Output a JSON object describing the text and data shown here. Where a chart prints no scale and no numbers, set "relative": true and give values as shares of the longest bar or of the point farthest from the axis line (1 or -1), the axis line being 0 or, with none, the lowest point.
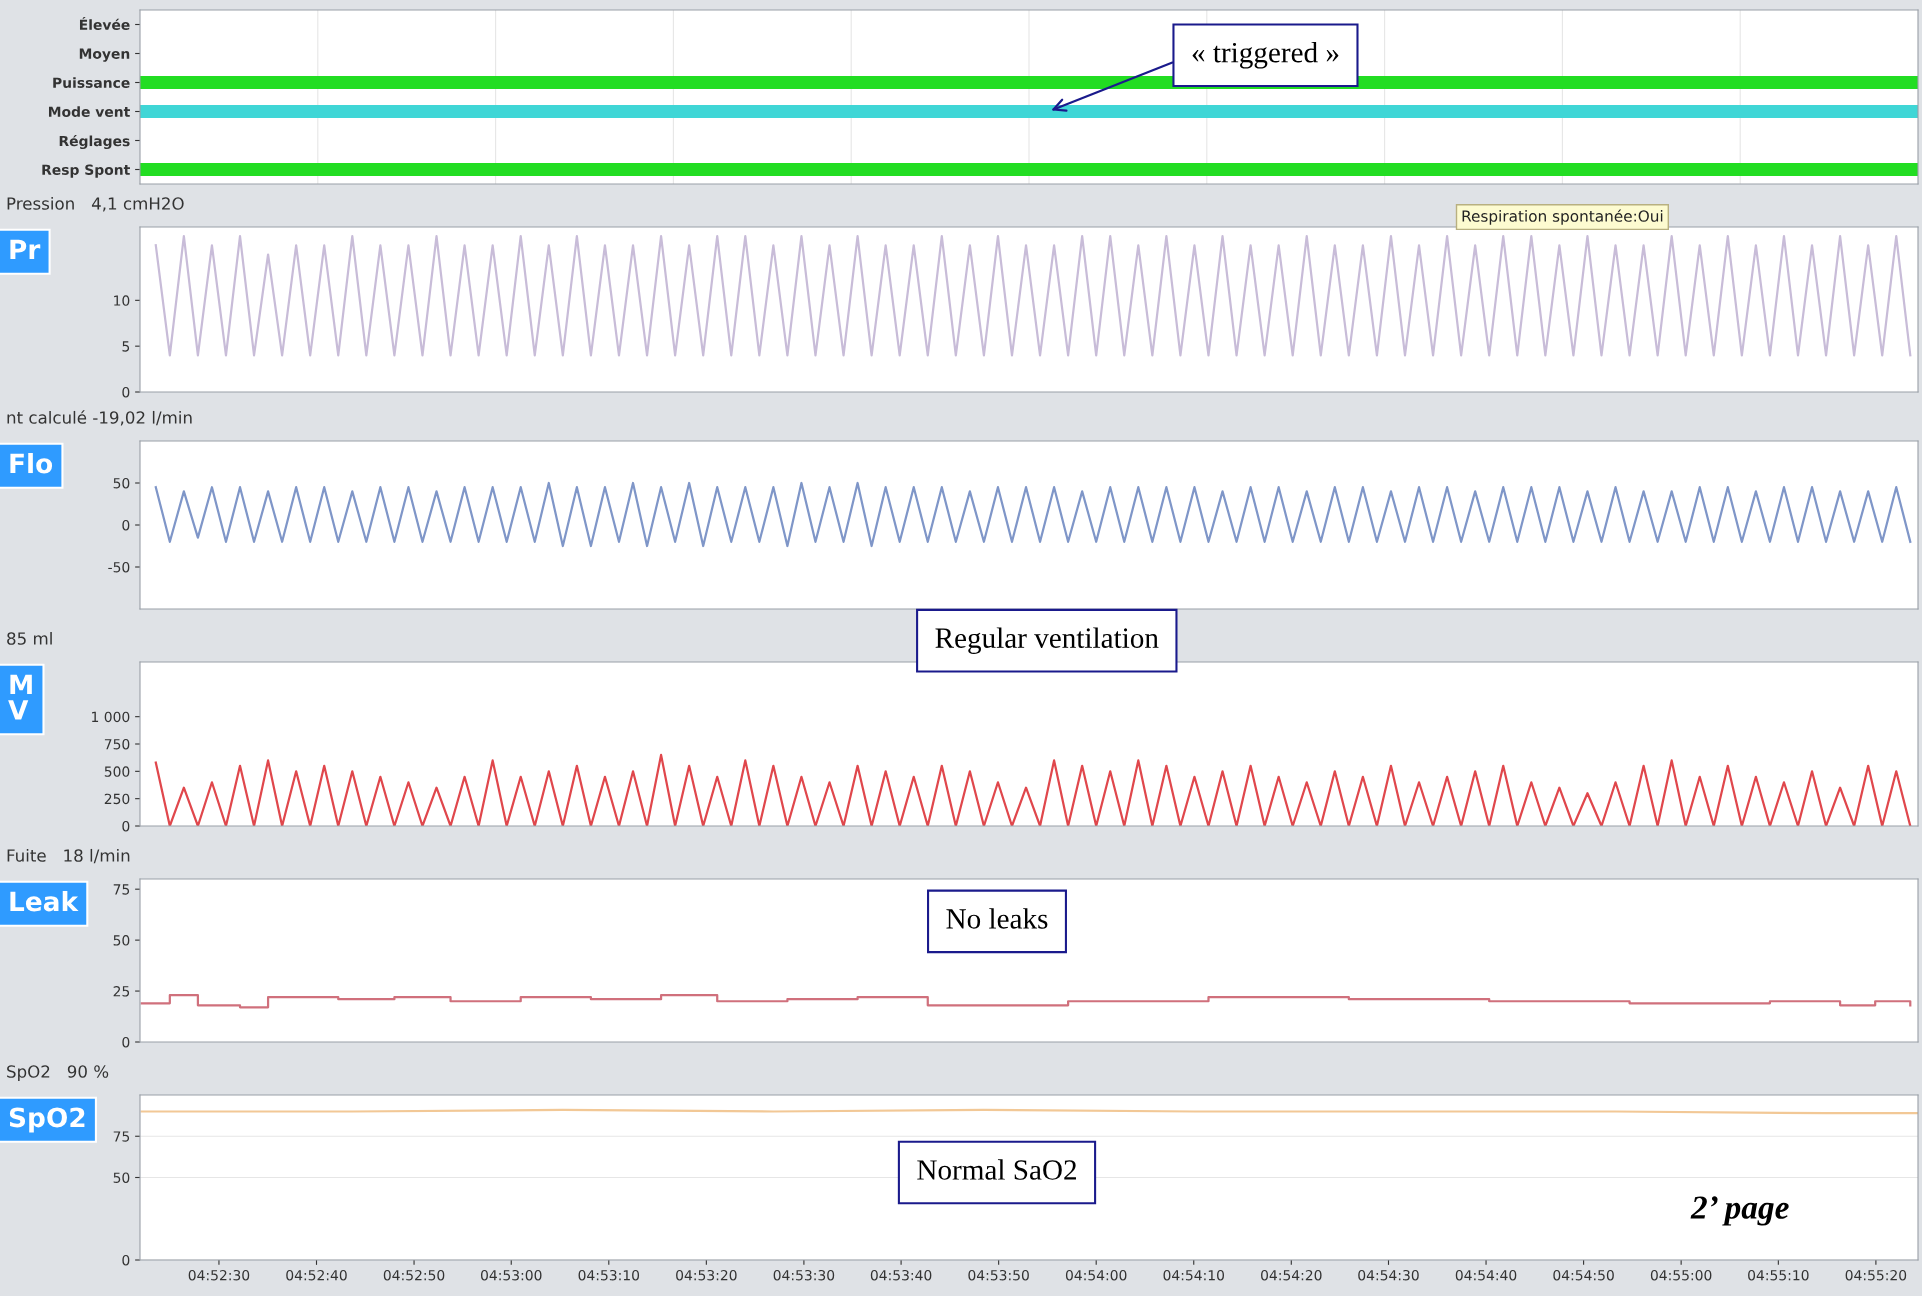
{
  "chart_data": [
    {
      "type": "bar",
      "orientation": "horizontal",
      "relative": true,
      "tick_labels": "y",
      "grid": "x",
      "categories": [
        "Élevée",
        "Moyen",
        "Puissance",
        "Mode vent",
        "Réglages",
        "Resp Spont"
      ],
      "values": [
        null,
        null,
        1,
        1,
        null,
        1
      ],
      "colors": [
        "#22dd22",
        "#22dd22",
        "#22dd22",
        "#3fd6d6",
        "#22dd22",
        "#22dd22"
      ],
      "annotations": [
        "« triggered »"
      ]
    },
    {
      "type": "line",
      "title": "Pression   4,1 cmH2O",
      "ylabel": "Pr",
      "tick_labels": "y",
      "xlim": [
        4.87275,
        4.92342
      ],
      "ylim": [
        0,
        18
      ],
      "yticks": [
        0,
        5,
        10
      ],
      "annotations": [
        "Respiration spontanée:Oui"
      ],
      "series": [
        {
          "color": "#c8bcd8",
          "x": [
            4.8732,
            4.8736,
            4.874,
            4.8744,
            4.8748,
            4.8752,
            4.8756,
            4.876,
            4.8764,
            4.8768,
            4.8772,
            4.8776,
            4.878,
            4.8784,
            4.8788,
            4.8792,
            4.8796,
            4.88,
            4.8804,
            4.8808,
            4.8812,
            4.8816,
            4.882,
            4.8824,
            4.8828,
            4.8832,
            4.8836,
            4.884,
            4.8844,
            4.8848,
            4.8852,
            4.8856,
            4.886,
            4.8864,
            4.8868,
            4.8872,
            4.8876,
            4.888,
            4.8884,
            4.8888,
            4.8892,
            4.8896,
            4.89,
            4.8904,
            4.8908,
            4.8912,
            4.8916,
            4.892,
            4.8924,
            4.8928,
            4.8932,
            4.8936,
            4.894,
            4.8944,
            4.8948,
            4.8952,
            4.8956,
            4.896,
            4.8964,
            4.8968,
            4.8972,
            4.8976,
            4.898,
            4.8984,
            4.8988,
            4.8992,
            4.8996,
            4.9,
            4.9004,
            4.9008,
            4.9012,
            4.9016,
            4.902,
            4.9024,
            4.9028,
            4.9032,
            4.9036,
            4.904,
            4.9044,
            4.9048,
            4.9052,
            4.9056,
            4.906,
            4.9064,
            4.9068,
            4.9072,
            4.9076,
            4.908,
            4.9084,
            4.9088,
            4.9092,
            4.9096,
            4.91,
            4.9104,
            4.9108,
            4.9112,
            4.9116,
            4.912,
            4.9124,
            4.9128,
            4.9132,
            4.9136,
            4.914,
            4.9144,
            4.9148,
            4.9152,
            4.9156,
            4.916,
            4.9164,
            4.9168,
            4.9172,
            4.9176,
            4.918,
            4.9184,
            4.9188,
            4.9192,
            4.9196,
            4.92,
            4.9204,
            4.9208,
            4.9212,
            4.9216,
            4.922,
            4.9224,
            4.9228,
            4.9232
          ],
          "values": [
            16,
            4,
            17,
            4,
            16,
            4,
            17,
            4,
            15,
            4,
            16,
            4,
            16,
            4,
            17,
            4,
            16,
            4,
            16,
            4,
            17,
            4,
            16,
            4,
            16,
            4,
            17,
            4,
            16,
            4,
            17,
            4,
            16,
            4,
            16,
            4,
            17,
            4,
            16,
            4,
            17,
            4,
            17,
            4,
            16,
            4,
            17,
            4,
            16,
            4,
            17,
            4,
            16,
            4,
            16,
            4,
            17,
            4,
            16,
            4,
            17,
            4,
            16,
            4,
            16,
            4,
            17,
            4,
            17,
            4,
            16,
            4,
            17,
            4,
            16,
            4,
            17,
            4,
            16,
            4,
            16,
            4,
            17,
            4,
            16,
            4,
            16,
            4,
            17,
            4,
            16,
            4,
            17,
            4,
            16,
            4,
            17,
            4,
            17,
            4,
            16,
            4,
            17,
            4,
            16,
            4,
            16,
            4,
            17,
            4,
            16,
            4,
            17,
            4,
            16,
            4,
            17,
            4,
            16,
            4,
            17,
            4,
            16,
            4,
            17,
            4
          ]
        }
      ]
    },
    {
      "type": "line",
      "title": "nt calculé -19,02 l/min",
      "ylabel": "Flo",
      "tick_labels": "y",
      "xlim": [
        4.87275,
        4.92342
      ],
      "ylim": [
        -100,
        100
      ],
      "yticks": [
        -50,
        0,
        50
      ],
      "series": [
        {
          "color": "#7f96c8",
          "x": [
            4.8732,
            4.8736,
            4.874,
            4.8744,
            4.8748,
            4.8752,
            4.8756,
            4.876,
            4.8764,
            4.8768,
            4.8772,
            4.8776,
            4.878,
            4.8784,
            4.8788,
            4.8792,
            4.8796,
            4.88,
            4.8804,
            4.8808,
            4.8812,
            4.8816,
            4.882,
            4.8824,
            4.8828,
            4.8832,
            4.8836,
            4.884,
            4.8844,
            4.8848,
            4.8852,
            4.8856,
            4.886,
            4.8864,
            4.8868,
            4.8872,
            4.8876,
            4.888,
            4.8884,
            4.8888,
            4.8892,
            4.8896,
            4.89,
            4.8904,
            4.8908,
            4.8912,
            4.8916,
            4.892,
            4.8924,
            4.8928,
            4.8932,
            4.8936,
            4.894,
            4.8944,
            4.8948,
            4.8952,
            4.8956,
            4.896,
            4.8964,
            4.8968,
            4.8972,
            4.8976,
            4.898,
            4.8984,
            4.8988,
            4.8992,
            4.8996,
            4.9,
            4.9004,
            4.9008,
            4.9012,
            4.9016,
            4.902,
            4.9024,
            4.9028,
            4.9032,
            4.9036,
            4.904,
            4.9044,
            4.9048,
            4.9052,
            4.9056,
            4.906,
            4.9064,
            4.9068,
            4.9072,
            4.9076,
            4.908,
            4.9084,
            4.9088,
            4.9092,
            4.9096,
            4.91,
            4.9104,
            4.9108,
            4.9112,
            4.9116,
            4.912,
            4.9124,
            4.9128,
            4.9132,
            4.9136,
            4.914,
            4.9144,
            4.9148,
            4.9152,
            4.9156,
            4.916,
            4.9164,
            4.9168,
            4.9172,
            4.9176,
            4.918,
            4.9184,
            4.9188,
            4.9192,
            4.9196,
            4.92,
            4.9204,
            4.9208,
            4.9212,
            4.9216,
            4.922,
            4.9224,
            4.9228,
            4.9232
          ],
          "values": [
            45,
            -20,
            40,
            -15,
            45,
            -20,
            45,
            -20,
            40,
            -20,
            45,
            -20,
            45,
            -20,
            40,
            -20,
            45,
            -20,
            45,
            -20,
            40,
            -20,
            45,
            -20,
            45,
            -20,
            45,
            -20,
            50,
            -25,
            45,
            -25,
            45,
            -20,
            50,
            -25,
            45,
            -20,
            50,
            -25,
            45,
            -20,
            45,
            -20,
            45,
            -25,
            50,
            -20,
            45,
            -20,
            50,
            -25,
            45,
            -20,
            45,
            -20,
            45,
            -20,
            40,
            -20,
            45,
            -20,
            45,
            -20,
            45,
            -20,
            40,
            -20,
            45,
            -20,
            45,
            -20,
            45,
            -20,
            45,
            -20,
            40,
            -20,
            45,
            -20,
            45,
            -20,
            40,
            -20,
            45,
            -20,
            45,
            -20,
            40,
            -20,
            45,
            -20,
            45,
            -20,
            40,
            -20,
            45,
            -20,
            45,
            -20,
            45,
            -20,
            40,
            -20,
            45,
            -20,
            40,
            -20,
            40,
            -20,
            45,
            -20,
            45,
            -20,
            40,
            -20,
            45,
            -20,
            45,
            -20,
            40,
            -20,
            40,
            -20,
            45,
            -20
          ]
        }
      ]
    },
    {
      "type": "line",
      "title": "85 ml",
      "ylabel": "M\nV",
      "tick_labels": "y",
      "xlim": [
        4.87275,
        4.92342
      ],
      "ylim": [
        0,
        1500
      ],
      "yticks": [
        0,
        250,
        500,
        750,
        {
          "value": 1000,
          "label": "1 000"
        }
      ],
      "annotations": [
        "Regular ventilation"
      ],
      "series": [
        {
          "color": "#e0474c",
          "x": [
            4.8732,
            4.8736,
            4.874,
            4.8744,
            4.8748,
            4.8752,
            4.8756,
            4.876,
            4.8764,
            4.8768,
            4.8772,
            4.8776,
            4.878,
            4.8784,
            4.8788,
            4.8792,
            4.8796,
            4.88,
            4.8804,
            4.8808,
            4.8812,
            4.8816,
            4.882,
            4.8824,
            4.8828,
            4.8832,
            4.8836,
            4.884,
            4.8844,
            4.8848,
            4.8852,
            4.8856,
            4.886,
            4.8864,
            4.8868,
            4.8872,
            4.8876,
            4.888,
            4.8884,
            4.8888,
            4.8892,
            4.8896,
            4.89,
            4.8904,
            4.8908,
            4.8912,
            4.8916,
            4.892,
            4.8924,
            4.8928,
            4.8932,
            4.8936,
            4.894,
            4.8944,
            4.8948,
            4.8952,
            4.8956,
            4.896,
            4.8964,
            4.8968,
            4.8972,
            4.8976,
            4.898,
            4.8984,
            4.8988,
            4.8992,
            4.8996,
            4.9,
            4.9004,
            4.9008,
            4.9012,
            4.9016,
            4.902,
            4.9024,
            4.9028,
            4.9032,
            4.9036,
            4.904,
            4.9044,
            4.9048,
            4.9052,
            4.9056,
            4.906,
            4.9064,
            4.9068,
            4.9072,
            4.9076,
            4.908,
            4.9084,
            4.9088,
            4.9092,
            4.9096,
            4.91,
            4.9104,
            4.9108,
            4.9112,
            4.9116,
            4.912,
            4.9124,
            4.9128,
            4.9132,
            4.9136,
            4.914,
            4.9144,
            4.9148,
            4.9152,
            4.9156,
            4.916,
            4.9164,
            4.9168,
            4.9172,
            4.9176,
            4.918,
            4.9184,
            4.9188,
            4.9192,
            4.9196,
            4.92,
            4.9204,
            4.9208,
            4.9212,
            4.9216,
            4.922,
            4.9224,
            4.9228,
            4.9232
          ],
          "values": [
            580,
            0,
            350,
            0,
            400,
            0,
            550,
            0,
            600,
            0,
            500,
            0,
            550,
            0,
            500,
            0,
            450,
            0,
            400,
            0,
            350,
            0,
            450,
            0,
            600,
            0,
            450,
            0,
            500,
            0,
            550,
            0,
            450,
            0,
            500,
            0,
            650,
            0,
            550,
            0,
            450,
            0,
            600,
            0,
            550,
            0,
            450,
            0,
            400,
            0,
            550,
            0,
            500,
            0,
            450,
            0,
            550,
            0,
            500,
            0,
            400,
            0,
            350,
            0,
            600,
            0,
            550,
            0,
            500,
            0,
            600,
            0,
            550,
            0,
            450,
            0,
            500,
            0,
            550,
            0,
            450,
            0,
            400,
            0,
            500,
            0,
            450,
            0,
            550,
            0,
            400,
            0,
            450,
            0,
            500,
            0,
            550,
            0,
            400,
            0,
            350,
            0,
            300,
            0,
            400,
            0,
            550,
            0,
            600,
            0,
            450,
            0,
            550,
            0,
            450,
            0,
            400,
            0,
            500,
            0,
            350,
            0,
            550,
            0,
            500,
            0
          ]
        }
      ]
    },
    {
      "type": "line",
      "title": "Fuite   18 l/min",
      "ylabel": "Leak",
      "tick_labels": "y",
      "xlim": [
        4.87275,
        4.92342
      ],
      "ylim": [
        0,
        80
      ],
      "yticks": [
        0,
        25,
        50,
        75
      ],
      "annotations": [
        "No leaks"
      ],
      "series": [
        {
          "type": "step",
          "color": "#d0707c",
          "x": [
            4.8728,
            4.8736,
            4.8744,
            4.8756,
            4.8764,
            4.8784,
            4.88,
            4.8816,
            4.8836,
            4.8856,
            4.8876,
            4.8892,
            4.8912,
            4.8932,
            4.8952,
            4.8992,
            4.9032,
            4.9072,
            4.9112,
            4.9152,
            4.9192,
            4.9212,
            4.9222,
            4.9232
          ],
          "values": [
            19,
            23,
            18,
            17,
            22,
            21,
            22,
            20,
            22,
            21,
            23,
            20,
            21,
            22,
            18,
            20,
            22,
            21,
            20,
            19,
            20,
            18,
            20,
            18
          ]
        }
      ]
    },
    {
      "type": "line",
      "title": "SpO2   90 %",
      "ylabel": "SpO2",
      "xlim": [
        4.87275,
        4.92342
      ],
      "ylim": [
        0,
        100
      ],
      "yticks": [
        0,
        50,
        75
      ],
      "xticks": [
        {
          "value": 4.875,
          "label": "04:52:30"
        },
        {
          "value": 4.87778,
          "label": "04:52:40"
        },
        {
          "value": 4.88056,
          "label": "04:52:50"
        },
        {
          "value": 4.88333,
          "label": "04:53:00"
        },
        {
          "value": 4.88611,
          "label": "04:53:10"
        },
        {
          "value": 4.88889,
          "label": "04:53:20"
        },
        {
          "value": 4.89167,
          "label": "04:53:30"
        },
        {
          "value": 4.89444,
          "label": "04:53:40"
        },
        {
          "value": 4.89722,
          "label": "04:53:50"
        },
        {
          "value": 4.9,
          "label": "04:54:00"
        },
        {
          "value": 4.90278,
          "label": "04:54:10"
        },
        {
          "value": 4.90556,
          "label": "04:54:20"
        },
        {
          "value": 4.90833,
          "label": "04:54:30"
        },
        {
          "value": 4.91111,
          "label": "04:54:40"
        },
        {
          "value": 4.91389,
          "label": "04:54:50"
        },
        {
          "value": 4.91667,
          "label": "04:55:00"
        },
        {
          "value": 4.91944,
          "label": "04:55:10"
        },
        {
          "value": 4.92222,
          "label": "04:55:20"
        }
      ],
      "grid": "y",
      "annotations": [
        "Normal SaO2",
        "2’ page"
      ],
      "series": [
        {
          "color": "#f2c896",
          "x": [
            4.8728,
            4.8788,
            4.8848,
            4.8908,
            4.8968,
            4.9028,
            4.9088,
            4.9148,
            4.9208,
            4.9234
          ],
          "values": [
            90,
            90,
            91,
            90,
            91,
            90,
            90,
            90,
            89,
            89
          ]
        }
      ]
    }
  ]
}
